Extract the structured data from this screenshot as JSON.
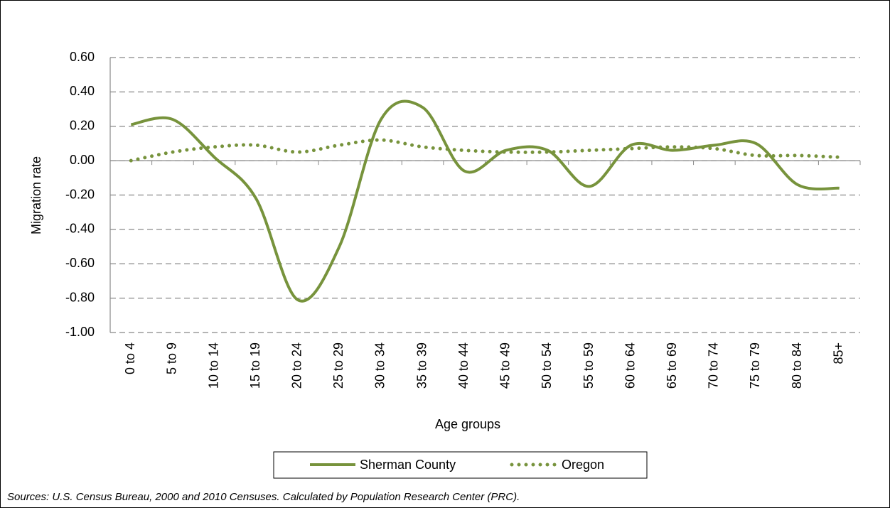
{
  "chart_data": {
    "type": "line",
    "categories": [
      "0 to 4",
      "5 to 9",
      "10 to 14",
      "15 to 19",
      "20 to 24",
      "25 to 29",
      "30 to 34",
      "35 to 39",
      "40 to 44",
      "45 to 49",
      "50 to 54",
      "55 to 59",
      "60 to 64",
      "65 to 69",
      "70 to 74",
      "75 to 79",
      "80 to 84",
      "85+"
    ],
    "series": [
      {
        "name": "Sherman County",
        "color": "#77933c",
        "style": "solid",
        "values": [
          0.21,
          0.24,
          0.02,
          -0.22,
          -0.81,
          -0.5,
          0.24,
          0.31,
          -0.06,
          0.06,
          0.06,
          -0.15,
          0.09,
          0.06,
          0.09,
          0.1,
          -0.14,
          -0.16
        ]
      },
      {
        "name": "Oregon",
        "color": "#77933c",
        "style": "dotted",
        "values": [
          0.0,
          0.05,
          0.08,
          0.09,
          0.05,
          0.09,
          0.12,
          0.08,
          0.06,
          0.05,
          0.05,
          0.06,
          0.07,
          0.08,
          0.07,
          0.03,
          0.03,
          0.02
        ]
      }
    ],
    "ylim": [
      -1.0,
      0.6
    ],
    "yticks": [
      {
        "value": -1.0,
        "label": "-1.00"
      },
      {
        "value": -0.8,
        "label": "-0.80"
      },
      {
        "value": -0.6,
        "label": "-0.60"
      },
      {
        "value": -0.4,
        "label": "-0.40"
      },
      {
        "value": -0.2,
        "label": "-0.20"
      },
      {
        "value": 0,
        "label": "0.00"
      },
      {
        "value": 0.2,
        "label": "0.20"
      },
      {
        "value": 0.4,
        "label": "0.40"
      },
      {
        "value": 0.6,
        "label": "0.60"
      }
    ],
    "grid": true,
    "smooth": true,
    "x_label": "Age groups",
    "y_label": "Migration rate",
    "legend": "bottom",
    "source": "Sources: U.S. Census Bureau, 2000 and 2010 Censuses. Calculated by Population Research  Center (PRC)."
  }
}
